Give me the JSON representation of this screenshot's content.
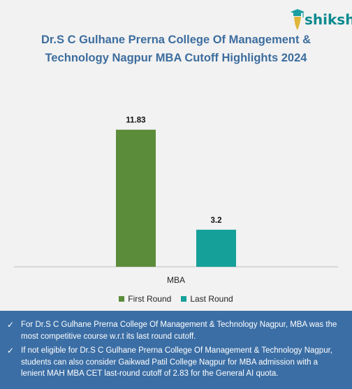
{
  "brand": {
    "logo_text": "shiksha"
  },
  "header": {
    "title_line1": "Dr.S C Gulhane Prerna College Of Management &",
    "title_line2": "Technology Nagpur MBA Cutoff Highlights 2024"
  },
  "chart_data": {
    "type": "bar",
    "categories": [
      "MBA"
    ],
    "series": [
      {
        "name": "First Round",
        "values": [
          11.83
        ],
        "color": "#5b8c3a"
      },
      {
        "name": "Last Round",
        "values": [
          3.2
        ],
        "color": "#16a09a"
      }
    ],
    "ylim": [
      0,
      13.5
    ],
    "grid": false,
    "legend_position": "bottom"
  },
  "notes": {
    "items": [
      "For Dr.S C Gulhane Prerna College Of Management & Technology Nagpur, MBA was the most competitive course w.r.t its last round cutoff.",
      "If not eligible for Dr.S C Gulhane Prerna College Of Management & Technology Nagpur, students can also consider Gaikwad Patil College Nagpur for MBA admission with a lenient MAH MBA CET last-round cutoff of 2.83 for the General AI quota."
    ],
    "check_icon": "✓"
  }
}
